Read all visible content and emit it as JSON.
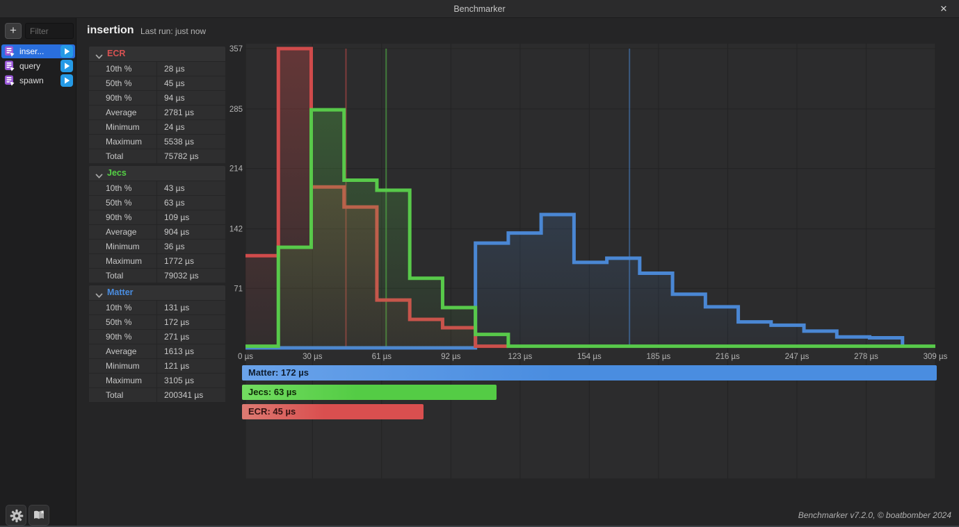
{
  "window": {
    "title": "Benchmarker",
    "close_glyph": "✕",
    "footer_credit": "Benchmarker v7.2.0, © boatbomber 2024"
  },
  "sidebar": {
    "add_glyph": "+",
    "filter_placeholder": "Filter",
    "items": [
      {
        "label": "inser...",
        "selected": true
      },
      {
        "label": "query",
        "selected": false
      },
      {
        "label": "spawn",
        "selected": false
      }
    ]
  },
  "header": {
    "title": "insertion",
    "last_run": "Last run: just now"
  },
  "stats": {
    "row_labels": [
      "10th %",
      "50th %",
      "90th %",
      "Average",
      "Minimum",
      "Maximum",
      "Total"
    ],
    "sections": [
      {
        "name": "ECR",
        "color": "#d95252",
        "values": [
          "28 µs",
          "45 µs",
          "94 µs",
          "2781 µs",
          "24 µs",
          "5538 µs",
          "75782 µs"
        ]
      },
      {
        "name": "Jecs",
        "color": "#55d145",
        "values": [
          "43 µs",
          "63 µs",
          "109 µs",
          "904 µs",
          "36 µs",
          "1772 µs",
          "79032 µs"
        ]
      },
      {
        "name": "Matter",
        "color": "#4a8de0",
        "values": [
          "131 µs",
          "172 µs",
          "271 µs",
          "1613 µs",
          "121 µs",
          "3105 µs",
          "200341 µs"
        ]
      }
    ]
  },
  "chart_data": {
    "type": "area",
    "subtype": "step-histogram",
    "x_unit": "µs",
    "xlim": [
      0,
      309
    ],
    "ylim": [
      0,
      357
    ],
    "bin_count": 21,
    "bin_width_us": 14.714,
    "x_tick_values": [
      0,
      30,
      61,
      92,
      123,
      154,
      185,
      216,
      247,
      278,
      309
    ],
    "x_tick_labels": [
      "0 µs",
      "30 µs",
      "61 µs",
      "92 µs",
      "123 µs",
      "154 µs",
      "185 µs",
      "216 µs",
      "247 µs",
      "278 µs",
      "309 µs"
    ],
    "y_tick_values": [
      71,
      142,
      214,
      285,
      357
    ],
    "grid": true,
    "series": [
      {
        "name": "Matter",
        "color": "#4a87d4",
        "median_us": 172,
        "values": [
          0,
          0,
          0,
          0,
          0,
          0,
          0,
          125,
          137,
          159,
          102,
          107,
          89,
          64,
          49,
          31,
          27,
          20,
          13,
          12,
          0
        ]
      },
      {
        "name": "ECR",
        "color": "#d04b4b",
        "median_us": 45,
        "values": [
          110,
          357,
          192,
          168,
          57,
          34,
          24,
          2,
          0,
          0,
          0,
          0,
          0,
          0,
          0,
          0,
          0,
          0,
          0,
          0,
          0
        ]
      },
      {
        "name": "Jecs",
        "color": "#58c94a",
        "median_us": 63,
        "values": [
          2,
          120,
          284,
          200,
          188,
          83,
          48,
          16,
          2,
          2,
          2,
          2,
          2,
          2,
          2,
          2,
          2,
          2,
          2,
          2,
          2
        ]
      }
    ],
    "median_bars": [
      {
        "label": "Matter: 172 µs",
        "median_us": 172,
        "color": "#4a8de0",
        "color_left": "#6aa3ea",
        "label_color": "#0e1c2e"
      },
      {
        "label": "Jecs: 63 µs",
        "median_us": 63,
        "color": "#54cc45",
        "color_left": "#72dc60",
        "label_color": "#0f2808"
      },
      {
        "label": "ECR: 45 µs",
        "median_us": 45,
        "color": "#d94f4f",
        "color_left": "#dd7a72",
        "label_color": "#331111"
      }
    ]
  }
}
